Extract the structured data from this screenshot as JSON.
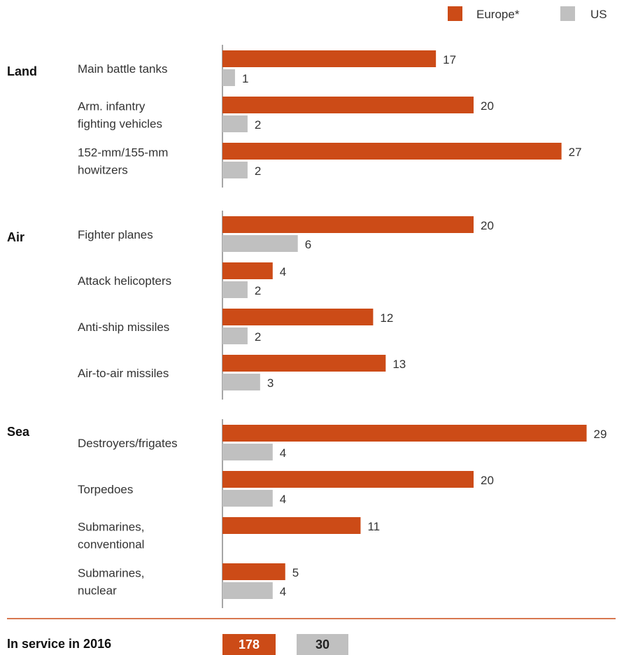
{
  "chart_data": {
    "type": "bar",
    "orientation": "horizontal",
    "legend_position": "top-right",
    "series": [
      {
        "name": "Europe*",
        "color": "#cc4b17"
      },
      {
        "name": "US",
        "color": "#c0c0c0"
      }
    ],
    "groups": [
      {
        "name": "Land",
        "items": [
          {
            "label": [
              "Main battle tanks"
            ],
            "europe": 17,
            "us": 1
          },
          {
            "label": [
              "Arm. infantry",
              "fighting vehicles"
            ],
            "europe": 20,
            "us": 2
          },
          {
            "label": [
              "152-mm/155-mm",
              "howitzers"
            ],
            "europe": 27,
            "us": 2
          }
        ]
      },
      {
        "name": "Air",
        "items": [
          {
            "label": [
              "Fighter planes"
            ],
            "europe": 20,
            "us": 6
          },
          {
            "label": [
              "Attack helicopters"
            ],
            "europe": 4,
            "us": 2
          },
          {
            "label": [
              "Anti-ship missiles"
            ],
            "europe": 12,
            "us": 2
          },
          {
            "label": [
              "Air-to-air missiles"
            ],
            "europe": 13,
            "us": 3
          }
        ]
      },
      {
        "name": "Sea",
        "items": [
          {
            "label": [
              "Destroyers/frigates"
            ],
            "europe": 29,
            "us": 4
          },
          {
            "label": [
              "Torpedoes"
            ],
            "europe": 20,
            "us": 4
          },
          {
            "label": [
              "Submarines,",
              "conventional"
            ],
            "europe": 11,
            "us": null
          },
          {
            "label": [
              "Submarines,",
              "nuclear"
            ],
            "europe": 5,
            "us": 4
          }
        ]
      }
    ],
    "total": {
      "label": "In service in 2016",
      "europe": 178,
      "us": 30
    }
  }
}
